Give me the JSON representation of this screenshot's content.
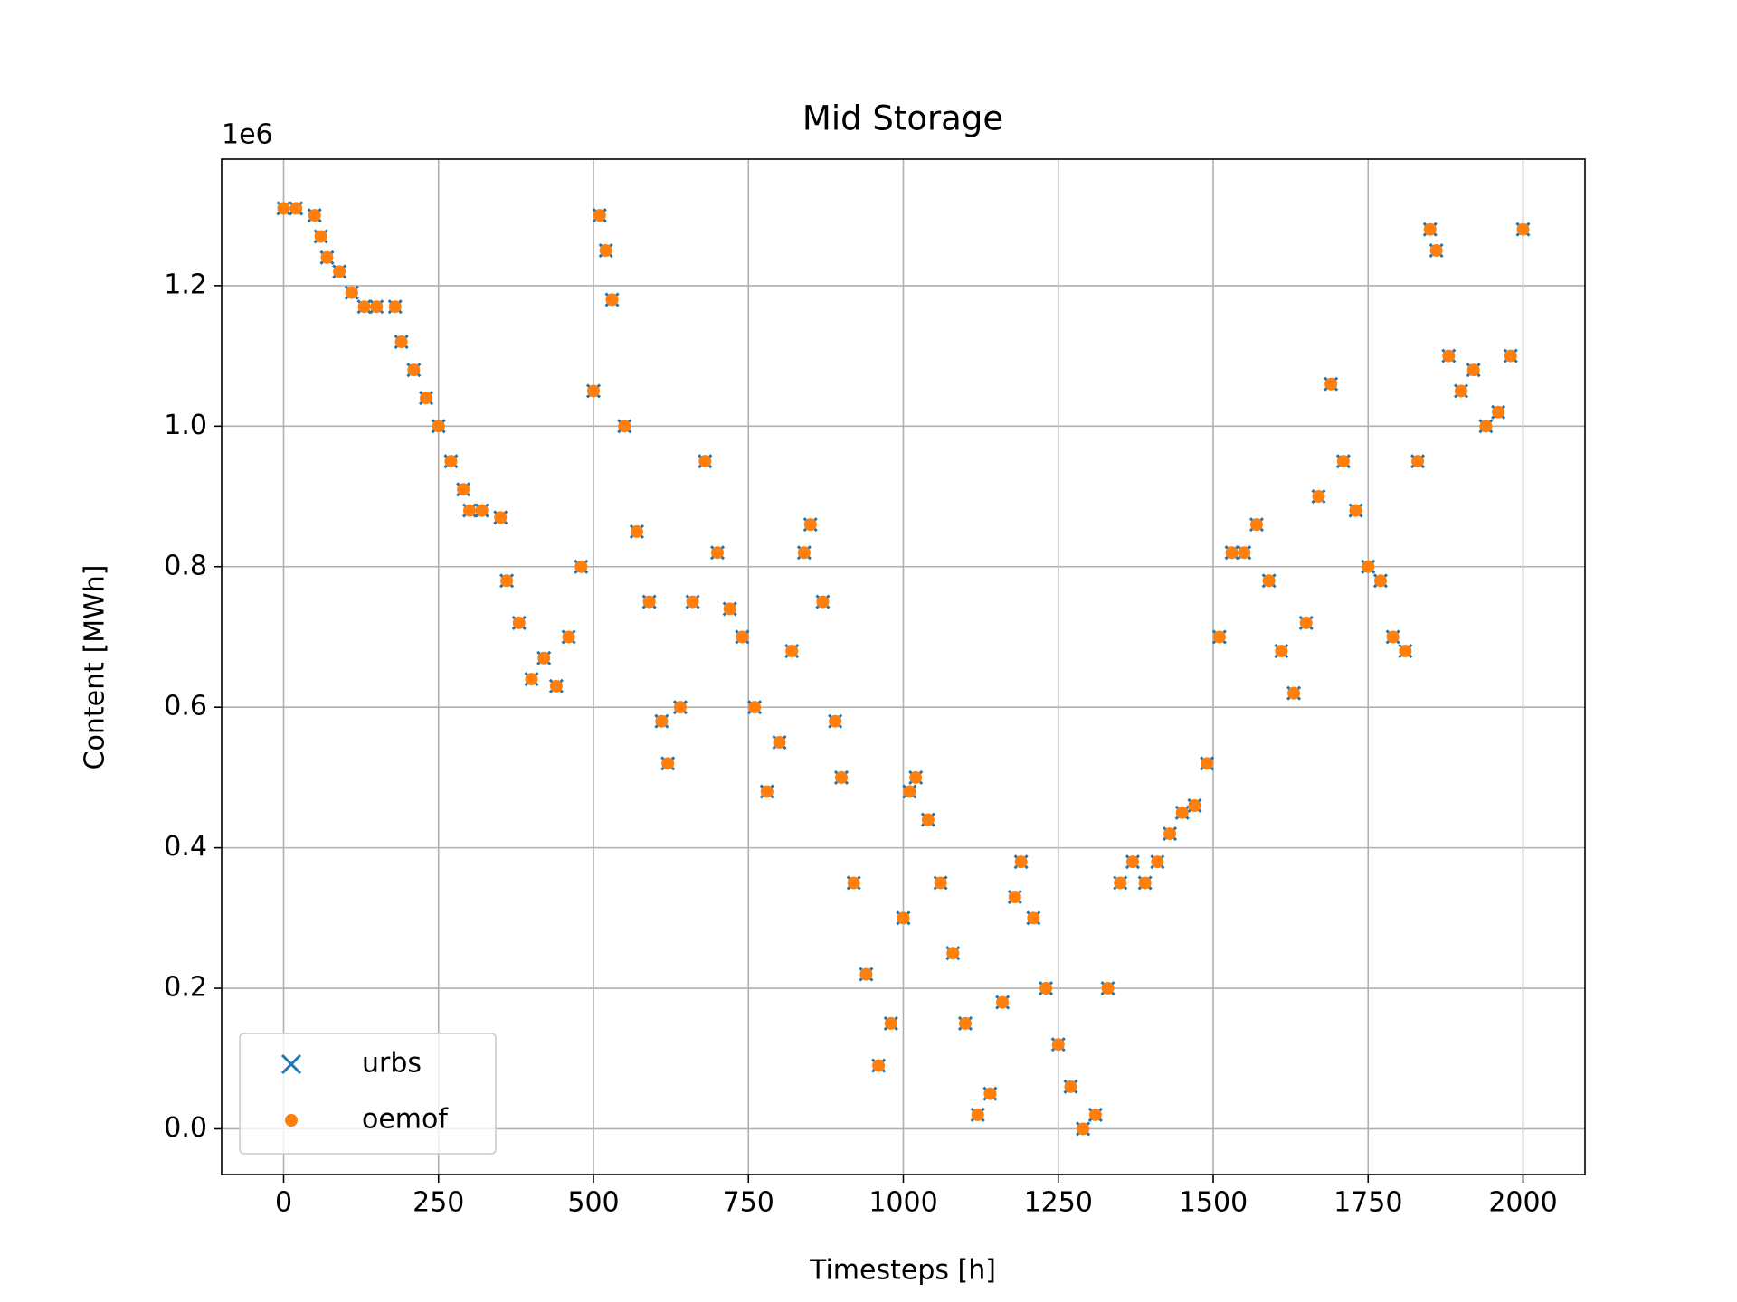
{
  "chart_data": {
    "type": "scatter",
    "title": "Mid Storage",
    "x_label": "Timesteps [h]",
    "y_label": "Content [MWh]",
    "y_offset_label": "1e6",
    "x": [
      0,
      20,
      50,
      60,
      70,
      90,
      110,
      130,
      150,
      180,
      190,
      210,
      230,
      250,
      270,
      290,
      300,
      320,
      350,
      360,
      380,
      400,
      420,
      440,
      460,
      480,
      500,
      510,
      520,
      530,
      550,
      570,
      590,
      610,
      620,
      640,
      660,
      680,
      700,
      720,
      740,
      760,
      780,
      800,
      820,
      840,
      850,
      870,
      890,
      900,
      920,
      940,
      960,
      980,
      1000,
      1010,
      1020,
      1040,
      1060,
      1080,
      1100,
      1120,
      1140,
      1160,
      1180,
      1190,
      1210,
      1230,
      1250,
      1270,
      1290,
      1310,
      1330,
      1350,
      1370,
      1390,
      1410,
      1430,
      1450,
      1470,
      1490,
      1510,
      1530,
      1550,
      1570,
      1590,
      1610,
      1630,
      1650,
      1670,
      1690,
      1710,
      1730,
      1750,
      1770,
      1790,
      1810,
      1830,
      1850,
      1860,
      1880,
      1900,
      1920,
      1940,
      1960,
      1980,
      2000
    ],
    "series": [
      {
        "name": "urbs",
        "color": "#1f77b4",
        "marker": "x",
        "values": [
          1.31,
          1.31,
          1.3,
          1.27,
          1.24,
          1.22,
          1.19,
          1.17,
          1.17,
          1.17,
          1.12,
          1.08,
          1.04,
          1.0,
          0.95,
          0.91,
          0.88,
          0.88,
          0.87,
          0.78,
          0.72,
          0.64,
          0.67,
          0.63,
          0.7,
          0.8,
          1.05,
          1.3,
          1.25,
          1.18,
          1.0,
          0.85,
          0.75,
          0.58,
          0.52,
          0.6,
          0.75,
          0.95,
          0.82,
          0.74,
          0.7,
          0.6,
          0.48,
          0.55,
          0.68,
          0.82,
          0.86,
          0.75,
          0.58,
          0.5,
          0.35,
          0.22,
          0.09,
          0.15,
          0.3,
          0.48,
          0.5,
          0.44,
          0.35,
          0.25,
          0.15,
          0.02,
          0.05,
          0.18,
          0.33,
          0.38,
          0.3,
          0.2,
          0.12,
          0.06,
          0.0,
          0.02,
          0.2,
          0.35,
          0.38,
          0.35,
          0.38,
          0.42,
          0.45,
          0.46,
          0.52,
          0.7,
          0.82,
          0.82,
          0.86,
          0.78,
          0.68,
          0.62,
          0.72,
          0.9,
          1.06,
          0.95,
          0.88,
          0.8,
          0.78,
          0.7,
          0.68,
          0.95,
          1.28,
          1.25,
          1.1,
          1.05,
          1.08,
          1.0,
          1.02,
          1.1,
          1.28
        ]
      },
      {
        "name": "oemof",
        "color": "#ff7f0e",
        "marker": "o",
        "values": [
          1.31,
          1.31,
          1.3,
          1.27,
          1.24,
          1.22,
          1.19,
          1.17,
          1.17,
          1.17,
          1.12,
          1.08,
          1.04,
          1.0,
          0.95,
          0.91,
          0.88,
          0.88,
          0.87,
          0.78,
          0.72,
          0.64,
          0.67,
          0.63,
          0.7,
          0.8,
          1.05,
          1.3,
          1.25,
          1.18,
          1.0,
          0.85,
          0.75,
          0.58,
          0.52,
          0.6,
          0.75,
          0.95,
          0.82,
          0.74,
          0.7,
          0.6,
          0.48,
          0.55,
          0.68,
          0.82,
          0.86,
          0.75,
          0.58,
          0.5,
          0.35,
          0.22,
          0.09,
          0.15,
          0.3,
          0.48,
          0.5,
          0.44,
          0.35,
          0.25,
          0.15,
          0.02,
          0.05,
          0.18,
          0.33,
          0.38,
          0.3,
          0.2,
          0.12,
          0.06,
          0.0,
          0.02,
          0.2,
          0.35,
          0.38,
          0.35,
          0.38,
          0.42,
          0.45,
          0.46,
          0.52,
          0.7,
          0.82,
          0.82,
          0.86,
          0.78,
          0.68,
          0.62,
          0.72,
          0.9,
          1.06,
          0.95,
          0.88,
          0.8,
          0.78,
          0.7,
          0.68,
          0.95,
          1.28,
          1.25,
          1.1,
          1.05,
          1.08,
          1.0,
          1.02,
          1.1,
          1.28
        ]
      }
    ],
    "xlim": [
      -100,
      2100
    ],
    "xticks": [
      0,
      250,
      500,
      750,
      1000,
      1250,
      1500,
      1750,
      2000
    ],
    "ylim": [
      -0.065,
      1.38
    ],
    "yticks": [
      {
        "value": 0,
        "label": "0.0"
      },
      0.2,
      0.4,
      0.6,
      0.8,
      {
        "value": 1,
        "label": "1.0"
      },
      1.2
    ],
    "grid": true,
    "legend": "lower left"
  }
}
